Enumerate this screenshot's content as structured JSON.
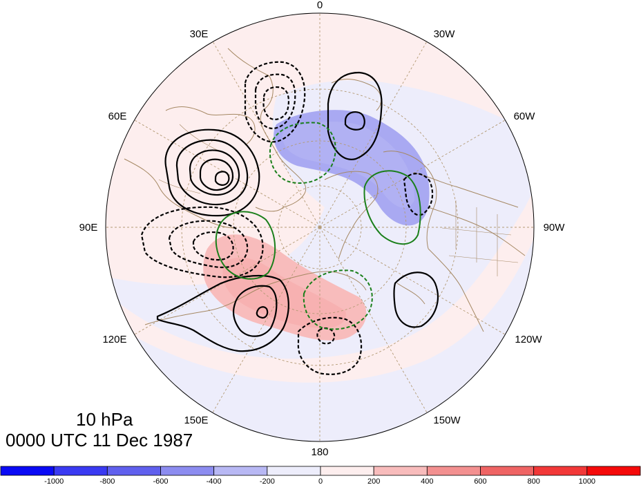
{
  "map": {
    "title_level": "10 hPa",
    "title_time": "0000 UTC 11 Dec 1987",
    "longitude_labels": [
      "0",
      "30W",
      "60W",
      "90W",
      "120W",
      "150W",
      "180",
      "150E",
      "120E",
      "90E",
      "60E",
      "30E"
    ]
  },
  "colorbar": {
    "tick_labels": [
      "-1000",
      "-800",
      "-600",
      "-400",
      "-200",
      "0",
      "200",
      "400",
      "600",
      "800",
      "1000"
    ],
    "colors": [
      "#0a0af5",
      "#3a3af2",
      "#6060ee",
      "#8c8cf0",
      "#b8b8f4",
      "#ededfb",
      "#fdeeee",
      "#f8bcbc",
      "#f39090",
      "#ef6464",
      "#f23838",
      "#f50a0a"
    ]
  },
  "contour_colors": {
    "positive": "#000000",
    "negative": "#000000",
    "green": "#1a7f1a",
    "coast": "#a58863"
  }
}
